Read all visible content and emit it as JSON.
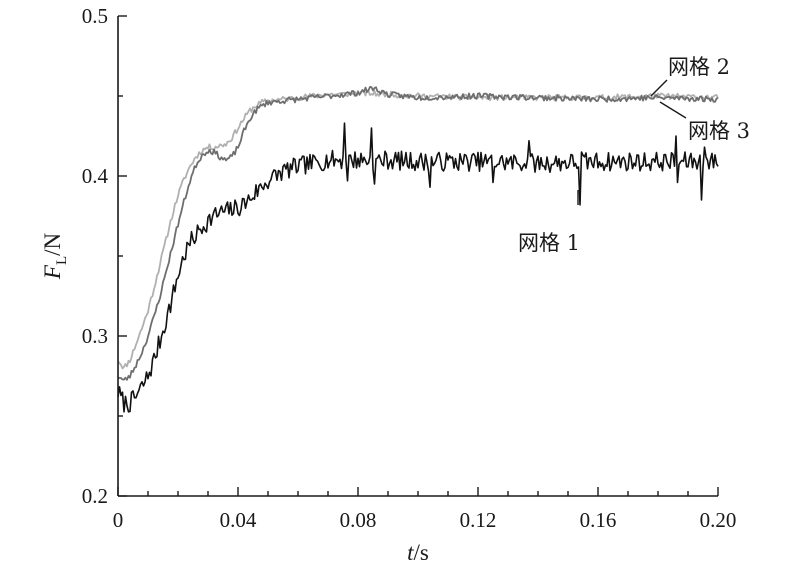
{
  "chart_data": {
    "type": "line",
    "xlabel": {
      "italic": "t",
      "rest": "/s"
    },
    "ylabel": {
      "italic": "F",
      "sub": "L",
      "rest": "/N"
    },
    "xlim": [
      0,
      0.2
    ],
    "ylim": [
      0.2,
      0.5
    ],
    "xticks": [
      "0",
      "0.04",
      "0.08",
      "0.12",
      "0.16",
      "0.20"
    ],
    "yticks": [
      "0.2",
      "0.3",
      "0.4",
      "0.5"
    ],
    "xtick_values": [
      0,
      0.04,
      0.08,
      0.12,
      0.16,
      0.2
    ],
    "ytick_values": [
      0.2,
      0.3,
      0.4,
      0.5
    ],
    "grid": false,
    "series": [
      {
        "name": "网格 1",
        "color": "#111111",
        "noise": 0.006,
        "seed": 7,
        "x": [
          0,
          0.002,
          0.004,
          0.006,
          0.008,
          0.01,
          0.012,
          0.014,
          0.016,
          0.018,
          0.02,
          0.022,
          0.024,
          0.026,
          0.028,
          0.03,
          0.032,
          0.034,
          0.036,
          0.038,
          0.04,
          0.043,
          0.046,
          0.05,
          0.055,
          0.06,
          0.065,
          0.07,
          0.075,
          0.08,
          0.09,
          0.1,
          0.12,
          0.14,
          0.16,
          0.18,
          0.2
        ],
        "values": [
          0.265,
          0.258,
          0.258,
          0.262,
          0.268,
          0.275,
          0.285,
          0.297,
          0.31,
          0.323,
          0.338,
          0.35,
          0.358,
          0.363,
          0.368,
          0.372,
          0.375,
          0.377,
          0.378,
          0.379,
          0.38,
          0.384,
          0.39,
          0.397,
          0.403,
          0.406,
          0.408,
          0.41,
          0.41,
          0.41,
          0.41,
          0.409,
          0.409,
          0.408,
          0.409,
          0.409,
          0.409
        ],
        "spikes": [
          [
            0.0755,
            0.433
          ],
          [
            0.0765,
            0.397
          ],
          [
            0.0845,
            0.43
          ],
          [
            0.0855,
            0.395
          ],
          [
            0.154,
            0.382
          ],
          [
            0.1545,
            0.415
          ],
          [
            0.186,
            0.425
          ],
          [
            0.1865,
            0.396
          ],
          [
            0.1945,
            0.385
          ],
          [
            0.1955,
            0.418
          ],
          [
            0.104,
            0.393
          ],
          [
            0.137,
            0.422
          ],
          [
            0.125,
            0.396
          ]
        ]
      },
      {
        "name": "网格 2",
        "color": "#b0b0b0",
        "noise": 0.0018,
        "seed": 11,
        "x": [
          0,
          0.002,
          0.004,
          0.006,
          0.008,
          0.01,
          0.012,
          0.014,
          0.016,
          0.018,
          0.02,
          0.022,
          0.024,
          0.026,
          0.028,
          0.03,
          0.032,
          0.034,
          0.036,
          0.038,
          0.04,
          0.042,
          0.044,
          0.046,
          0.048,
          0.05,
          0.055,
          0.06,
          0.065,
          0.07,
          0.075,
          0.08,
          0.09,
          0.1,
          0.12,
          0.14,
          0.16,
          0.18,
          0.2
        ],
        "values": [
          0.285,
          0.28,
          0.285,
          0.295,
          0.305,
          0.316,
          0.33,
          0.345,
          0.36,
          0.375,
          0.388,
          0.398,
          0.406,
          0.412,
          0.416,
          0.418,
          0.418,
          0.419,
          0.42,
          0.424,
          0.43,
          0.436,
          0.441,
          0.444,
          0.446,
          0.447,
          0.448,
          0.449,
          0.45,
          0.451,
          0.451,
          0.452,
          0.451,
          0.45,
          0.449,
          0.449,
          0.449,
          0.45,
          0.449
        ]
      },
      {
        "name": "网格 3",
        "color": "#6e6e6e",
        "noise": 0.0018,
        "seed": 23,
        "x": [
          0,
          0.002,
          0.004,
          0.006,
          0.008,
          0.01,
          0.012,
          0.014,
          0.016,
          0.018,
          0.02,
          0.022,
          0.024,
          0.026,
          0.028,
          0.03,
          0.032,
          0.034,
          0.036,
          0.038,
          0.04,
          0.042,
          0.044,
          0.046,
          0.048,
          0.05,
          0.055,
          0.06,
          0.065,
          0.07,
          0.075,
          0.08,
          0.085,
          0.09,
          0.1,
          0.12,
          0.14,
          0.16,
          0.18,
          0.2
        ],
        "values": [
          0.275,
          0.272,
          0.275,
          0.282,
          0.29,
          0.3,
          0.312,
          0.325,
          0.34,
          0.355,
          0.37,
          0.384,
          0.397,
          0.407,
          0.413,
          0.416,
          0.415,
          0.412,
          0.41,
          0.412,
          0.418,
          0.428,
          0.436,
          0.441,
          0.444,
          0.446,
          0.447,
          0.448,
          0.449,
          0.45,
          0.451,
          0.452,
          0.455,
          0.451,
          0.449,
          0.45,
          0.449,
          0.448,
          0.449,
          0.448
        ]
      }
    ],
    "annotations": [
      {
        "text": "网格 2"
      },
      {
        "text": "网格 3"
      },
      {
        "text": "网格 1"
      }
    ]
  }
}
